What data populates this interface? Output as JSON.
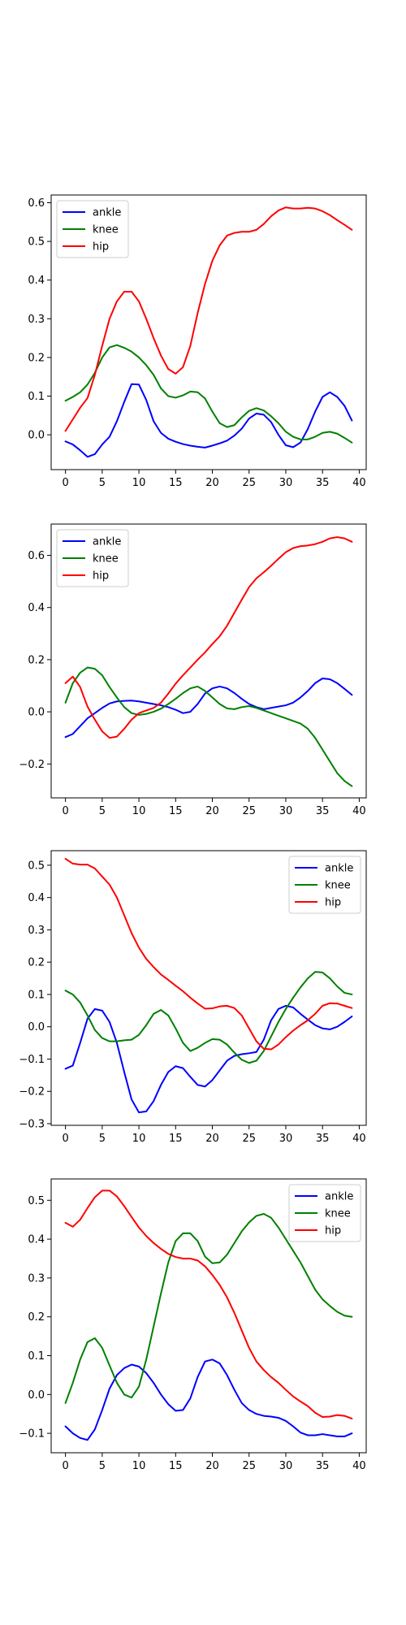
{
  "chart_data": [
    {
      "type": "line",
      "x": [
        0,
        1,
        2,
        3,
        4,
        5,
        6,
        7,
        8,
        9,
        10,
        11,
        12,
        13,
        14,
        15,
        16,
        17,
        18,
        19,
        20,
        21,
        22,
        23,
        24,
        25,
        26,
        27,
        28,
        29,
        30,
        31,
        32,
        33,
        34,
        35,
        36,
        37,
        38,
        39
      ],
      "xlim": [
        -1.95,
        40.95
      ],
      "ylim": [
        -0.09,
        0.62
      ],
      "xticks": [
        0,
        5,
        10,
        15,
        20,
        25,
        30,
        35,
        40
      ],
      "yticks": [
        0.0,
        0.1,
        0.2,
        0.3,
        0.4,
        0.5,
        0.6
      ],
      "ytick_labels": [
        "0.0",
        "0.1",
        "0.2",
        "0.3",
        "0.4",
        "0.5",
        "0.6"
      ],
      "legend_position": "upper-left",
      "grid": false,
      "series": [
        {
          "name": "ankle",
          "color": "#0000ff",
          "values": [
            -0.017,
            -0.025,
            -0.04,
            -0.057,
            -0.05,
            -0.025,
            -0.005,
            0.035,
            0.085,
            0.131,
            0.13,
            0.09,
            0.035,
            0.005,
            -0.01,
            -0.018,
            -0.024,
            -0.028,
            -0.031,
            -0.033,
            -0.028,
            -0.022,
            -0.015,
            -0.002,
            0.016,
            0.042,
            0.055,
            0.052,
            0.033,
            0.0,
            -0.027,
            -0.032,
            -0.02,
            0.015,
            0.06,
            0.098,
            0.11,
            0.098,
            0.075,
            0.037
          ]
        },
        {
          "name": "knee",
          "color": "#008000",
          "values": [
            0.088,
            0.098,
            0.11,
            0.13,
            0.16,
            0.2,
            0.226,
            0.232,
            0.225,
            0.215,
            0.2,
            0.18,
            0.155,
            0.12,
            0.1,
            0.096,
            0.102,
            0.112,
            0.11,
            0.094,
            0.06,
            0.03,
            0.02,
            0.025,
            0.045,
            0.062,
            0.069,
            0.063,
            0.048,
            0.03,
            0.008,
            -0.005,
            -0.012,
            -0.012,
            -0.005,
            0.005,
            0.008,
            0.003,
            -0.008,
            -0.02
          ]
        },
        {
          "name": "hip",
          "color": "#ff0000",
          "values": [
            0.01,
            0.04,
            0.07,
            0.095,
            0.155,
            0.23,
            0.3,
            0.345,
            0.37,
            0.37,
            0.345,
            0.3,
            0.25,
            0.205,
            0.17,
            0.158,
            0.175,
            0.23,
            0.315,
            0.39,
            0.45,
            0.49,
            0.515,
            0.522,
            0.525,
            0.525,
            0.53,
            0.545,
            0.565,
            0.58,
            0.588,
            0.585,
            0.585,
            0.587,
            0.585,
            0.578,
            0.568,
            0.555,
            0.543,
            0.53
          ]
        }
      ]
    },
    {
      "type": "line",
      "x": [
        0,
        1,
        2,
        3,
        4,
        5,
        6,
        7,
        8,
        9,
        10,
        11,
        12,
        13,
        14,
        15,
        16,
        17,
        18,
        19,
        20,
        21,
        22,
        23,
        24,
        25,
        26,
        27,
        28,
        29,
        30,
        31,
        32,
        33,
        34,
        35,
        36,
        37,
        38,
        39
      ],
      "xlim": [
        -1.95,
        40.95
      ],
      "ylim": [
        -0.33,
        0.72
      ],
      "xticks": [
        0,
        5,
        10,
        15,
        20,
        25,
        30,
        35,
        40
      ],
      "yticks": [
        -0.2,
        0.0,
        0.2,
        0.4,
        0.6
      ],
      "ytick_labels": [
        "−0.2",
        "0.0",
        "0.2",
        "0.4",
        "0.6"
      ],
      "legend_position": "upper-left",
      "grid": false,
      "series": [
        {
          "name": "ankle",
          "color": "#0000ff",
          "values": [
            -0.097,
            -0.085,
            -0.055,
            -0.025,
            -0.005,
            0.015,
            0.032,
            0.04,
            0.042,
            0.043,
            0.04,
            0.035,
            0.03,
            0.025,
            0.018,
            0.008,
            -0.005,
            0.0,
            0.03,
            0.07,
            0.09,
            0.097,
            0.09,
            0.072,
            0.05,
            0.03,
            0.018,
            0.01,
            0.015,
            0.02,
            0.025,
            0.035,
            0.055,
            0.08,
            0.11,
            0.128,
            0.125,
            0.11,
            0.088,
            0.065
          ]
        },
        {
          "name": "knee",
          "color": "#008000",
          "values": [
            0.035,
            0.11,
            0.15,
            0.17,
            0.165,
            0.14,
            0.095,
            0.055,
            0.018,
            -0.005,
            -0.012,
            -0.008,
            0.0,
            0.012,
            0.03,
            0.05,
            0.072,
            0.09,
            0.097,
            0.08,
            0.055,
            0.03,
            0.013,
            0.01,
            0.018,
            0.022,
            0.015,
            0.005,
            -0.005,
            -0.015,
            -0.025,
            -0.035,
            -0.045,
            -0.065,
            -0.1,
            -0.145,
            -0.19,
            -0.235,
            -0.265,
            -0.285
          ]
        },
        {
          "name": "hip",
          "color": "#ff0000",
          "values": [
            0.11,
            0.135,
            0.095,
            0.02,
            -0.03,
            -0.075,
            -0.1,
            -0.095,
            -0.065,
            -0.03,
            -0.005,
            0.005,
            0.015,
            0.035,
            0.07,
            0.108,
            0.14,
            0.17,
            0.2,
            0.228,
            0.26,
            0.29,
            0.33,
            0.38,
            0.43,
            0.478,
            0.512,
            0.535,
            0.56,
            0.587,
            0.612,
            0.628,
            0.635,
            0.638,
            0.643,
            0.652,
            0.665,
            0.67,
            0.665,
            0.652
          ]
        }
      ]
    },
    {
      "type": "line",
      "x": [
        0,
        1,
        2,
        3,
        4,
        5,
        6,
        7,
        8,
        9,
        10,
        11,
        12,
        13,
        14,
        15,
        16,
        17,
        18,
        19,
        20,
        21,
        22,
        23,
        24,
        25,
        26,
        27,
        28,
        29,
        30,
        31,
        32,
        33,
        34,
        35,
        36,
        37,
        38,
        39
      ],
      "xlim": [
        -1.95,
        40.95
      ],
      "ylim": [
        -0.305,
        0.545
      ],
      "xticks": [
        0,
        5,
        10,
        15,
        20,
        25,
        30,
        35,
        40
      ],
      "yticks": [
        -0.3,
        -0.2,
        -0.1,
        0.0,
        0.1,
        0.2,
        0.3,
        0.4,
        0.5
      ],
      "ytick_labels": [
        "−0.3",
        "−0.2",
        "−0.1",
        "0.0",
        "0.1",
        "0.2",
        "0.3",
        "0.4",
        "0.5"
      ],
      "legend_position": "upper-right",
      "grid": false,
      "series": [
        {
          "name": "ankle",
          "color": "#0000ff",
          "values": [
            -0.13,
            -0.12,
            -0.05,
            0.025,
            0.055,
            0.05,
            0.015,
            -0.05,
            -0.14,
            -0.225,
            -0.265,
            -0.262,
            -0.23,
            -0.18,
            -0.14,
            -0.122,
            -0.128,
            -0.155,
            -0.18,
            -0.185,
            -0.165,
            -0.135,
            -0.105,
            -0.09,
            -0.085,
            -0.082,
            -0.078,
            -0.04,
            0.02,
            0.055,
            0.065,
            0.06,
            0.04,
            0.022,
            0.005,
            -0.005,
            -0.008,
            0.0,
            0.015,
            0.032
          ]
        },
        {
          "name": "knee",
          "color": "#008000",
          "values": [
            0.112,
            0.1,
            0.075,
            0.035,
            -0.01,
            -0.035,
            -0.045,
            -0.045,
            -0.042,
            -0.04,
            -0.025,
            0.005,
            0.04,
            0.052,
            0.035,
            -0.005,
            -0.05,
            -0.075,
            -0.065,
            -0.05,
            -0.038,
            -0.04,
            -0.055,
            -0.08,
            -0.102,
            -0.112,
            -0.105,
            -0.075,
            -0.03,
            0.015,
            0.055,
            0.09,
            0.122,
            0.15,
            0.17,
            0.168,
            0.15,
            0.125,
            0.105,
            0.1
          ]
        },
        {
          "name": "hip",
          "color": "#ff0000",
          "values": [
            0.52,
            0.505,
            0.502,
            0.502,
            0.49,
            0.465,
            0.44,
            0.4,
            0.345,
            0.29,
            0.245,
            0.21,
            0.185,
            0.162,
            0.145,
            0.127,
            0.11,
            0.09,
            0.072,
            0.056,
            0.057,
            0.063,
            0.065,
            0.058,
            0.035,
            -0.005,
            -0.045,
            -0.068,
            -0.07,
            -0.055,
            -0.032,
            -0.012,
            0.005,
            0.02,
            0.04,
            0.065,
            0.073,
            0.072,
            0.065,
            0.058
          ]
        }
      ]
    },
    {
      "type": "line",
      "x": [
        0,
        1,
        2,
        3,
        4,
        5,
        6,
        7,
        8,
        9,
        10,
        11,
        12,
        13,
        14,
        15,
        16,
        17,
        18,
        19,
        20,
        21,
        22,
        23,
        24,
        25,
        26,
        27,
        28,
        29,
        30,
        31,
        32,
        33,
        34,
        35,
        36,
        37,
        38,
        39
      ],
      "xlim": [
        -1.95,
        40.95
      ],
      "ylim": [
        -0.15,
        0.555
      ],
      "xticks": [
        0,
        5,
        10,
        15,
        20,
        25,
        30,
        35,
        40
      ],
      "yticks": [
        -0.1,
        0.0,
        0.1,
        0.2,
        0.3,
        0.4,
        0.5
      ],
      "ytick_labels": [
        "−0.1",
        "0.0",
        "0.1",
        "0.2",
        "0.3",
        "0.4",
        "0.5"
      ],
      "legend_position": "upper-right",
      "grid": false,
      "series": [
        {
          "name": "ankle",
          "color": "#0000ff",
          "values": [
            -0.082,
            -0.1,
            -0.112,
            -0.117,
            -0.09,
            -0.04,
            0.015,
            0.05,
            0.068,
            0.077,
            0.072,
            0.055,
            0.03,
            0.0,
            -0.025,
            -0.042,
            -0.04,
            -0.01,
            0.045,
            0.085,
            0.09,
            0.08,
            0.05,
            0.012,
            -0.022,
            -0.04,
            -0.05,
            -0.055,
            -0.057,
            -0.06,
            -0.068,
            -0.082,
            -0.098,
            -0.105,
            -0.105,
            -0.102,
            -0.105,
            -0.108,
            -0.108,
            -0.1
          ]
        },
        {
          "name": "knee",
          "color": "#008000",
          "values": [
            -0.022,
            0.03,
            0.09,
            0.135,
            0.145,
            0.12,
            0.075,
            0.03,
            0.0,
            -0.008,
            0.02,
            0.09,
            0.175,
            0.26,
            0.34,
            0.395,
            0.415,
            0.415,
            0.395,
            0.355,
            0.338,
            0.34,
            0.36,
            0.39,
            0.42,
            0.443,
            0.46,
            0.465,
            0.455,
            0.43,
            0.4,
            0.37,
            0.34,
            0.305,
            0.27,
            0.245,
            0.228,
            0.213,
            0.203,
            0.2
          ]
        },
        {
          "name": "hip",
          "color": "#ff0000",
          "values": [
            0.442,
            0.432,
            0.45,
            0.48,
            0.508,
            0.525,
            0.525,
            0.51,
            0.485,
            0.457,
            0.43,
            0.408,
            0.39,
            0.375,
            0.362,
            0.354,
            0.35,
            0.35,
            0.345,
            0.33,
            0.308,
            0.282,
            0.25,
            0.21,
            0.165,
            0.12,
            0.085,
            0.063,
            0.045,
            0.03,
            0.012,
            -0.005,
            -0.018,
            -0.03,
            -0.047,
            -0.058,
            -0.057,
            -0.053,
            -0.055,
            -0.062
          ]
        }
      ]
    }
  ]
}
